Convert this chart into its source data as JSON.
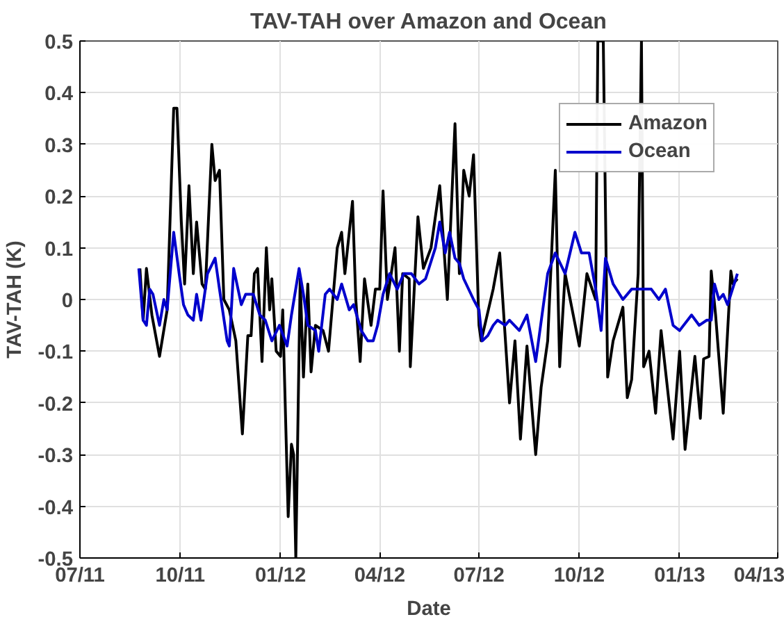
{
  "chart_data": {
    "type": "line",
    "title": "TAV-TAH over Amazon and Ocean",
    "xlabel": "Date",
    "ylabel": "TAV-TAH (K)",
    "xlim": [
      "2011-07-01",
      "2013-04-01"
    ],
    "xticks": [
      {
        "value": "2011-07-01",
        "label": "07/11"
      },
      {
        "value": "2011-10-01",
        "label": "10/11"
      },
      {
        "value": "2012-01-01",
        "label": "01/12"
      },
      {
        "value": "2012-04-01",
        "label": "04/12"
      },
      {
        "value": "2012-07-01",
        "label": "07/12"
      },
      {
        "value": "2012-10-01",
        "label": "10/12"
      },
      {
        "value": "2013-01-01",
        "label": "01/13"
      },
      {
        "value": "2013-04-01",
        "label": "04/13"
      }
    ],
    "ylim": [
      -0.5,
      0.5
    ],
    "yticks": [
      -0.5,
      -0.4,
      -0.3,
      -0.2,
      -0.1,
      0,
      0.1,
      0.2,
      0.3,
      0.4,
      0.5
    ],
    "grid": true,
    "legend": "top right",
    "line_style": "solid",
    "marker": "none",
    "series": [
      {
        "name": "Amazon",
        "color": "#000000",
        "x": [
          "2011-08-25",
          "2011-08-28",
          "2011-08-31",
          "2011-09-05",
          "2011-09-12",
          "2011-09-19",
          "2011-09-25",
          "2011-09-28",
          "2011-10-02",
          "2011-10-05",
          "2011-10-09",
          "2011-10-13",
          "2011-10-16",
          "2011-10-21",
          "2011-10-24",
          "2011-10-30",
          "2011-11-02",
          "2011-11-06",
          "2011-11-10",
          "2011-11-15",
          "2011-11-21",
          "2011-11-27",
          "2011-12-02",
          "2011-12-05",
          "2011-12-08",
          "2011-12-11",
          "2011-12-15",
          "2011-12-19",
          "2011-12-22",
          "2011-12-24",
          "2011-12-28",
          "2012-01-01",
          "2012-01-03",
          "2012-01-08",
          "2012-01-11",
          "2012-01-13",
          "2012-01-15",
          "2012-01-19",
          "2012-01-22",
          "2012-01-26",
          "2012-01-29",
          "2012-02-02",
          "2012-02-09",
          "2012-02-14",
          "2012-02-22",
          "2012-02-26",
          "2012-02-29",
          "2012-03-07",
          "2012-03-10",
          "2012-03-14",
          "2012-03-18",
          "2012-03-24",
          "2012-03-28",
          "2012-04-01",
          "2012-04-04",
          "2012-04-08",
          "2012-04-15",
          "2012-04-19",
          "2012-04-22",
          "2012-04-28",
          "2012-04-29",
          "2012-05-06",
          "2012-05-11",
          "2012-05-18",
          "2012-05-26",
          "2012-06-02",
          "2012-06-09",
          "2012-06-13",
          "2012-06-17",
          "2012-06-22",
          "2012-06-26",
          "2012-07-01",
          "2012-07-03",
          "2012-07-14",
          "2012-07-20",
          "2012-07-29",
          "2012-08-03",
          "2012-08-08",
          "2012-08-14",
          "2012-08-22",
          "2012-08-27",
          "2012-09-02",
          "2012-09-09",
          "2012-09-13",
          "2012-09-18",
          "2012-10-01",
          "2012-10-08",
          "2012-10-16",
          "2012-10-18",
          "2012-10-23",
          "2012-10-27",
          "2012-11-01",
          "2012-11-10",
          "2012-11-14",
          "2012-11-18",
          "2012-11-24",
          "2012-11-27",
          "2012-11-29",
          "2012-12-04",
          "2012-12-10",
          "2012-12-15",
          "2012-12-26",
          "2013-01-01",
          "2013-01-06",
          "2013-01-15",
          "2013-01-20",
          "2013-01-23",
          "2013-01-28",
          "2013-01-30",
          "2013-02-03",
          "2013-02-10",
          "2013-02-17",
          "2013-02-19",
          "2013-02-23"
        ],
        "values": [
          0.06,
          -0.04,
          0.06,
          -0.03,
          -0.11,
          -0.02,
          0.37,
          0.37,
          0.15,
          0.03,
          0.22,
          0.05,
          0.15,
          0.03,
          0.02,
          0.3,
          0.23,
          0.25,
          0.0,
          -0.02,
          -0.08,
          -0.26,
          -0.07,
          -0.07,
          0.05,
          0.06,
          -0.12,
          0.1,
          -0.02,
          0.04,
          -0.1,
          -0.11,
          -0.02,
          -0.42,
          -0.28,
          -0.3,
          -0.5,
          0.04,
          -0.15,
          0.03,
          -0.14,
          -0.05,
          -0.06,
          -0.1,
          0.1,
          0.13,
          0.05,
          0.19,
          0.0,
          -0.12,
          0.04,
          -0.05,
          0.02,
          0.02,
          0.21,
          0.0,
          0.1,
          -0.1,
          0.05,
          0.04,
          -0.13,
          0.16,
          0.06,
          0.1,
          0.22,
          0.0,
          0.34,
          0.05,
          0.25,
          0.2,
          0.28,
          -0.05,
          -0.08,
          0.02,
          0.09,
          -0.2,
          -0.08,
          -0.27,
          -0.09,
          -0.3,
          -0.17,
          -0.08,
          0.25,
          -0.13,
          0.05,
          -0.09,
          0.05,
          0.0,
          0.5,
          0.5,
          -0.15,
          -0.08,
          -0.015,
          -0.19,
          -0.155,
          0.05,
          0.5,
          -0.13,
          -0.1,
          -0.22,
          -0.06,
          -0.27,
          -0.1,
          -0.29,
          -0.11,
          -0.23,
          -0.115,
          -0.11,
          0.055,
          -0.03,
          -0.22,
          0.055,
          0.03,
          0.04
        ]
      },
      {
        "name": "Ocean",
        "color": "#0000cc",
        "x": [
          "2011-08-24",
          "2011-08-28",
          "2011-08-31",
          "2011-09-03",
          "2011-09-06",
          "2011-09-12",
          "2011-09-16",
          "2011-09-19",
          "2011-09-25",
          "2011-09-30",
          "2011-10-04",
          "2011-10-08",
          "2011-10-13",
          "2011-10-16",
          "2011-10-20",
          "2011-10-26",
          "2011-11-02",
          "2011-11-06",
          "2011-11-13",
          "2011-11-15",
          "2011-11-19",
          "2011-11-26",
          "2011-11-30",
          "2011-12-07",
          "2011-12-13",
          "2011-12-18",
          "2011-12-24",
          "2011-12-31",
          "2012-01-07",
          "2012-01-11",
          "2012-01-18",
          "2012-01-22",
          "2012-01-26",
          "2012-02-02",
          "2012-02-05",
          "2012-02-11",
          "2012-02-15",
          "2012-02-22",
          "2012-02-26",
          "2012-03-04",
          "2012-03-08",
          "2012-03-15",
          "2012-03-21",
          "2012-03-26",
          "2012-03-30",
          "2012-04-04",
          "2012-04-10",
          "2012-04-17",
          "2012-04-23",
          "2012-04-30",
          "2012-05-07",
          "2012-05-13",
          "2012-05-22",
          "2012-05-26",
          "2012-05-31",
          "2012-06-04",
          "2012-06-09",
          "2012-06-13",
          "2012-06-17",
          "2012-06-26",
          "2012-07-01",
          "2012-07-04",
          "2012-07-09",
          "2012-07-14",
          "2012-07-18",
          "2012-07-25",
          "2012-07-29",
          "2012-08-07",
          "2012-08-14",
          "2012-08-22",
          "2012-09-02",
          "2012-09-09",
          "2012-09-18",
          "2012-09-27",
          "2012-10-03",
          "2012-10-10",
          "2012-10-16",
          "2012-10-21",
          "2012-10-25",
          "2012-11-01",
          "2012-11-10",
          "2012-11-18",
          "2012-11-27",
          "2012-12-06",
          "2012-12-13",
          "2012-12-19",
          "2012-12-26",
          "2013-01-01",
          "2013-01-12",
          "2013-01-19",
          "2013-01-26",
          "2013-01-30",
          "2013-02-02",
          "2013-02-06",
          "2013-02-10",
          "2013-02-14",
          "2013-02-23"
        ],
        "values": [
          0.06,
          -0.04,
          -0.05,
          0.02,
          0.01,
          -0.05,
          0.0,
          -0.02,
          0.13,
          0.05,
          -0.01,
          -0.03,
          -0.04,
          0.01,
          -0.04,
          0.05,
          0.08,
          0.02,
          -0.08,
          -0.09,
          0.06,
          -0.01,
          0.01,
          0.01,
          -0.03,
          -0.04,
          -0.08,
          -0.05,
          -0.09,
          -0.03,
          0.06,
          0.01,
          -0.05,
          -0.06,
          -0.1,
          0.01,
          0.02,
          0.0,
          0.03,
          -0.02,
          -0.01,
          -0.06,
          -0.08,
          -0.08,
          -0.05,
          0.01,
          0.05,
          0.02,
          0.05,
          0.05,
          0.03,
          0.04,
          0.1,
          0.15,
          0.09,
          0.13,
          0.08,
          0.07,
          0.04,
          0.0,
          -0.02,
          -0.08,
          -0.07,
          -0.05,
          -0.04,
          -0.05,
          -0.04,
          -0.06,
          -0.03,
          -0.12,
          0.05,
          0.09,
          0.05,
          0.13,
          0.09,
          0.09,
          0.02,
          -0.06,
          0.08,
          0.03,
          0.0,
          0.02,
          0.02,
          0.02,
          0.0,
          0.02,
          -0.05,
          -0.06,
          -0.03,
          -0.05,
          -0.04,
          -0.04,
          0.03,
          0.0,
          0.01,
          -0.01,
          0.05
        ]
      }
    ]
  }
}
